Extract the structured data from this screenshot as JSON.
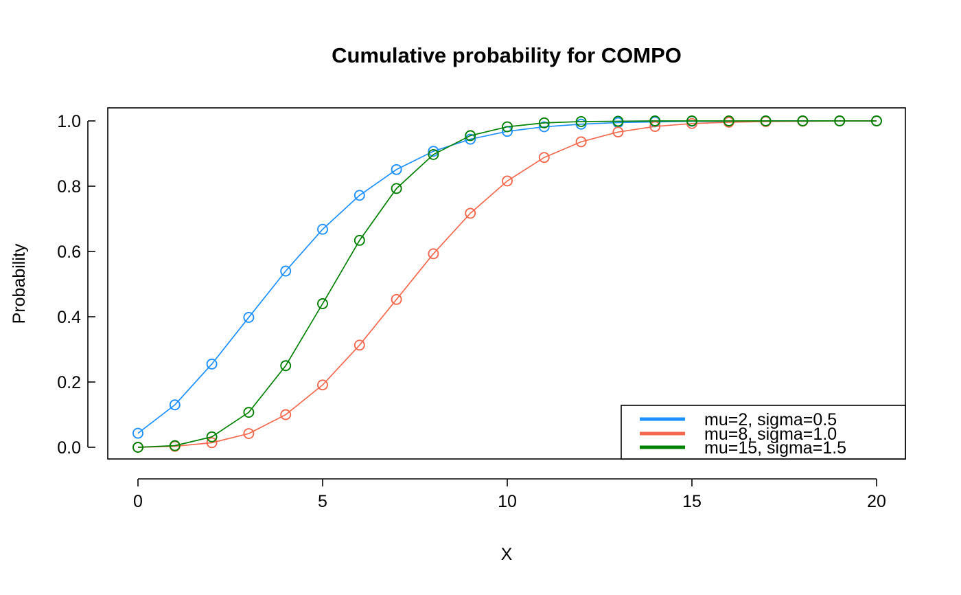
{
  "chart_data": {
    "type": "line",
    "title": "Cumulative probability for COMPO",
    "xlabel": "X",
    "ylabel": "Probability",
    "xlim": [
      0,
      20
    ],
    "ylim": [
      0,
      1
    ],
    "x_ticks": [
      "0",
      "5",
      "10",
      "15",
      "20"
    ],
    "y_ticks": [
      "0.0",
      "0.2",
      "0.4",
      "0.6",
      "0.8",
      "1.0"
    ],
    "grid": false,
    "legend_position": "bottom-right",
    "x": [
      0,
      1,
      2,
      3,
      4,
      5,
      6,
      7,
      8,
      9,
      10,
      11,
      12,
      13,
      14,
      15,
      16,
      17,
      18,
      19,
      20
    ],
    "series": [
      {
        "name": "mu=2, sigma=0.5",
        "color": "#1e90ff",
        "values": [
          0.043,
          0.13,
          0.255,
          0.398,
          0.54,
          0.668,
          0.772,
          0.851,
          0.907,
          0.944,
          0.968,
          0.982,
          0.99,
          0.995,
          0.997,
          0.999,
          0.999,
          1.0,
          1.0,
          1.0,
          1.0
        ]
      },
      {
        "name": "mu=8, sigma=1.0",
        "color": "#f4694e",
        "values": [
          0.0,
          0.003,
          0.014,
          0.042,
          0.1,
          0.191,
          0.313,
          0.453,
          0.593,
          0.717,
          0.816,
          0.888,
          0.936,
          0.966,
          0.983,
          0.992,
          0.996,
          0.998,
          0.999,
          1.0,
          1.0
        ]
      },
      {
        "name": "mu=15, sigma=1.5",
        "color": "#008000",
        "values": [
          0.0,
          0.005,
          0.032,
          0.107,
          0.25,
          0.44,
          0.634,
          0.793,
          0.897,
          0.955,
          0.982,
          0.994,
          0.998,
          0.999,
          1.0,
          1.0,
          1.0,
          1.0,
          1.0,
          1.0,
          1.0
        ]
      }
    ]
  }
}
